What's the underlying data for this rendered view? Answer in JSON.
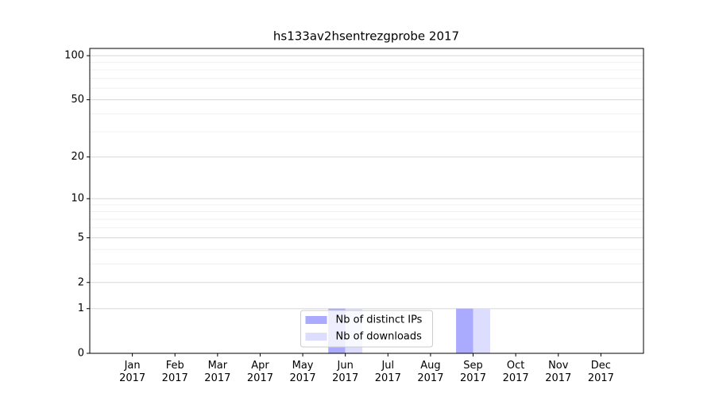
{
  "chart_data": {
    "type": "bar",
    "title": "hs133av2hsentrezgprobe 2017",
    "categories": [
      "Jan\n2017",
      "Feb\n2017",
      "Mar\n2017",
      "Apr\n2017",
      "May\n2017",
      "Jun\n2017",
      "Jul\n2017",
      "Aug\n2017",
      "Sep\n2017",
      "Oct\n2017",
      "Nov\n2017",
      "Dec\n2017"
    ],
    "series": [
      {
        "name": "Nb of distinct IPs",
        "color": "#aaaaff",
        "values": [
          0,
          0,
          0,
          0,
          0,
          1,
          0,
          0,
          1,
          0,
          0,
          0
        ]
      },
      {
        "name": "Nb of downloads",
        "color": "#ddddff",
        "values": [
          0,
          0,
          0,
          0,
          0,
          1,
          0,
          0,
          1,
          0,
          0,
          0
        ]
      }
    ],
    "yscale": "log1p",
    "ylim": [
      0,
      112
    ],
    "yticks": [
      0,
      1,
      2,
      5,
      10,
      20,
      50,
      100
    ],
    "minor_yticks": [
      3,
      4,
      6,
      7,
      8,
      9,
      30,
      40,
      60,
      70,
      80,
      90
    ],
    "grid": true,
    "legend": "lower center"
  }
}
